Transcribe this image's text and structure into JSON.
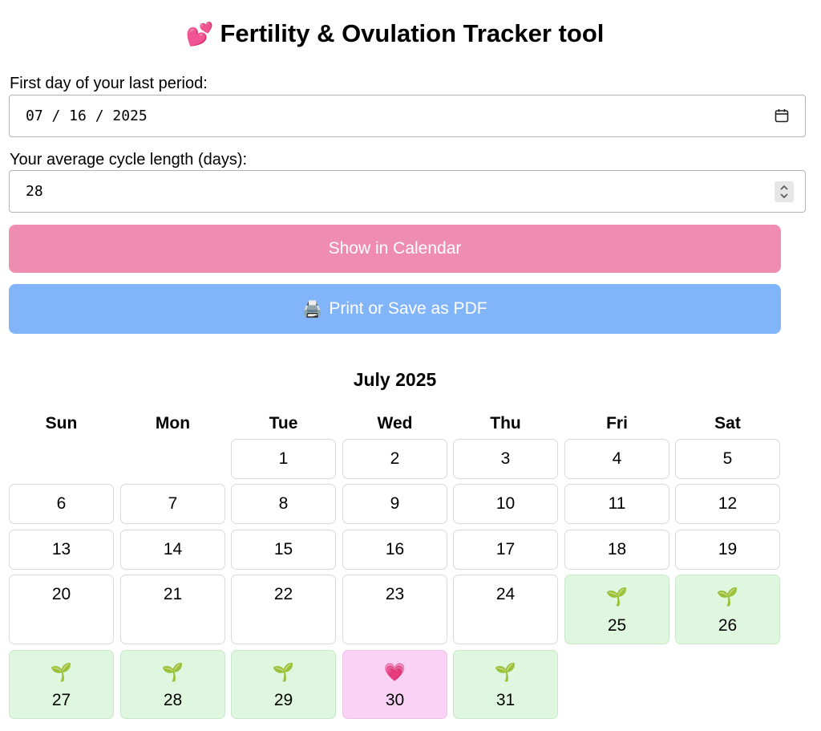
{
  "header": {
    "icon": "two-hearts-icon",
    "icon_glyph": "💕",
    "title": "Fertility & Ovulation Tracker tool"
  },
  "form": {
    "period_label": "First day of your last period:",
    "period_value": "07 / 16 / 2025",
    "cycle_label": "Your average cycle length (days):",
    "cycle_value": "28",
    "show_button": "Show in Calendar",
    "print_icon": "printer-icon",
    "print_icon_glyph": "🖨️",
    "print_button": "Print or Save as PDF"
  },
  "calendar": {
    "month_title": "July 2025",
    "weekdays": [
      "Sun",
      "Mon",
      "Tue",
      "Wed",
      "Thu",
      "Fri",
      "Sat"
    ],
    "fertile_icon": "seedling-icon",
    "fertile_glyph": "🌱",
    "ovulation_icon": "pink-heart-icon",
    "ovulation_glyph": "💗",
    "fertile_days": [
      25,
      26,
      27,
      28,
      29,
      31
    ],
    "ovulation_day": 30,
    "fertile_color": "#def7de",
    "ovulation_color": "#f9d2f5",
    "days": [
      "1",
      "2",
      "3",
      "4",
      "5",
      "6",
      "7",
      "8",
      "9",
      "10",
      "11",
      "12",
      "13",
      "14",
      "15",
      "16",
      "17",
      "18",
      "19",
      "20",
      "21",
      "22",
      "23",
      "24",
      "25",
      "26",
      "27",
      "28",
      "29",
      "30",
      "31"
    ]
  },
  "colors": {
    "show_button_bg": "#ef8db0",
    "print_button_bg": "#82b4fa"
  }
}
